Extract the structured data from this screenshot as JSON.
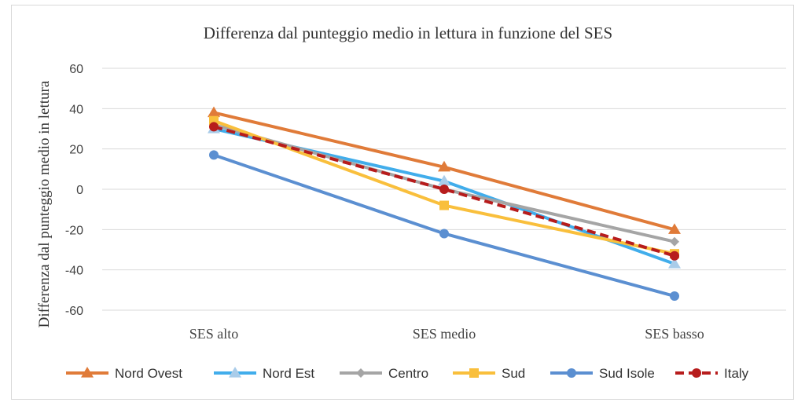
{
  "chart_data": {
    "type": "line",
    "title": "Differenza dal punteggio medio in lettura in funzione del SES",
    "xlabel": "",
    "ylabel": "Differenza dal punteggio medio in lettura",
    "categories": [
      "SES alto",
      "SES medio",
      "SES basso"
    ],
    "ylim": [
      -60,
      60
    ],
    "yticks": [
      "60",
      "40",
      "20",
      "0",
      "-20",
      "-40",
      "-60"
    ],
    "grid": true,
    "legend_position": "bottom",
    "series": [
      {
        "name": "Nord Ovest",
        "values": [
          38,
          11,
          -20
        ],
        "color": "#e07b39",
        "marker": "triangle",
        "dashed": false
      },
      {
        "name": "Nord Est",
        "values": [
          30,
          4,
          -37
        ],
        "color": "#41adeb",
        "marker": "triangle-light",
        "dashed": false
      },
      {
        "name": "Centro",
        "values": [
          32,
          0,
          -26
        ],
        "color": "#a5a5a5",
        "marker": "diamond",
        "dashed": false
      },
      {
        "name": "Sud",
        "values": [
          34,
          -8,
          -32
        ],
        "color": "#f9bf3c",
        "marker": "square",
        "dashed": false
      },
      {
        "name": "Sud Isole",
        "values": [
          17,
          -22,
          -53
        ],
        "color": "#5b8fd1",
        "marker": "circle",
        "dashed": false
      },
      {
        "name": "Italy",
        "values": [
          31,
          0,
          -33
        ],
        "color": "#b71c1c",
        "marker": "circle",
        "dashed": true
      }
    ]
  }
}
